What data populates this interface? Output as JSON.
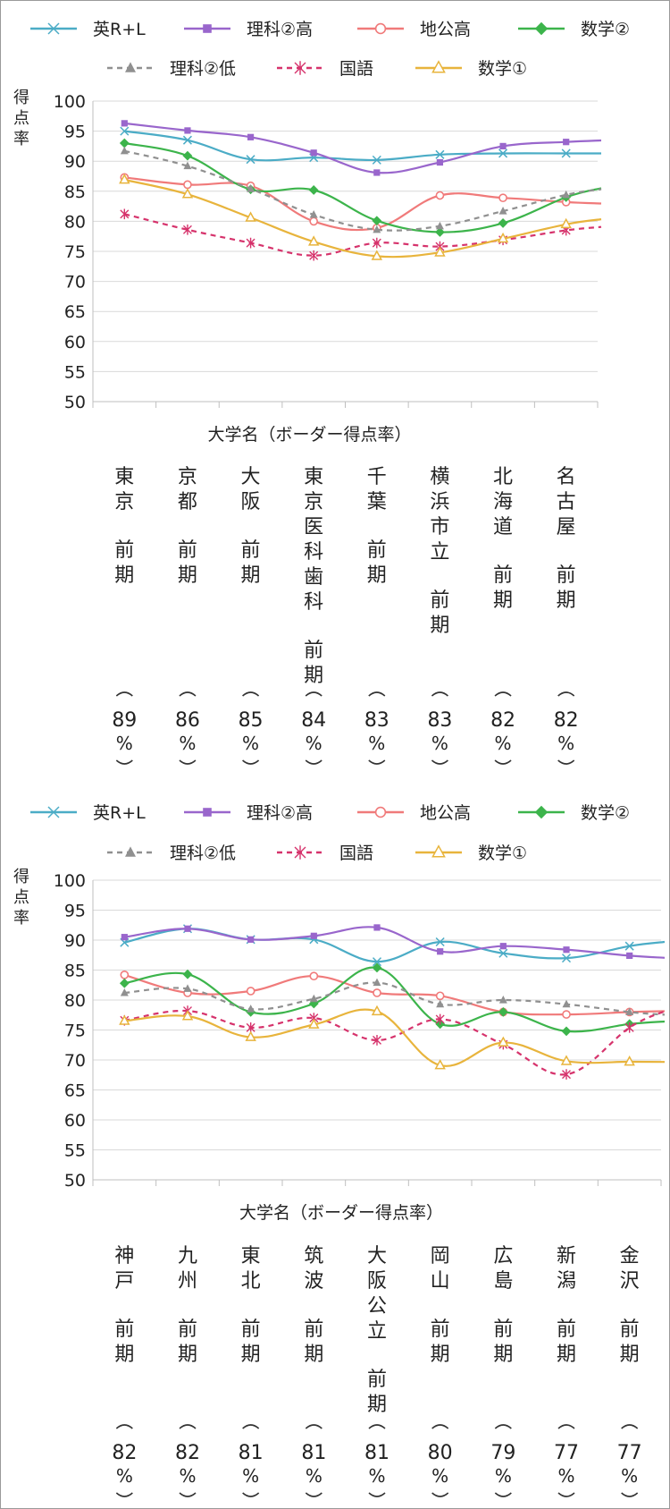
{
  "chart_data": [
    {
      "type": "line",
      "ylabel": "得点率",
      "xlabel": "大学名（ボーダー得点率）",
      "ylim": [
        50,
        100
      ],
      "yticks": [
        50,
        55,
        60,
        65,
        70,
        75,
        80,
        85,
        90,
        95,
        100
      ],
      "grid": true,
      "legend_position": "top",
      "categories": [
        {
          "name": "東京",
          "term": "前期",
          "rate": "89%"
        },
        {
          "name": "京都",
          "term": "前期",
          "rate": "86%"
        },
        {
          "name": "大阪",
          "term": "前期",
          "rate": "85%"
        },
        {
          "name": "東京医科歯科",
          "term": "前期",
          "rate": "84%"
        },
        {
          "name": "千葉",
          "term": "前期",
          "rate": "83%"
        },
        {
          "name": "横浜市立",
          "term": "前期",
          "rate": "83%"
        },
        {
          "name": "北海道",
          "term": "前期",
          "rate": "82%"
        },
        {
          "name": "名古屋",
          "term": "前期",
          "rate": "82%"
        }
      ],
      "series": [
        {
          "name": "英R+L",
          "color": "#4bacc6",
          "marker": "x-cross",
          "dashed": false,
          "values": [
            95,
            93.5,
            90.3,
            90.6,
            90.2,
            91.1,
            91.3,
            91.3
          ]
        },
        {
          "name": "理科②高",
          "color": "#9966cc",
          "marker": "square",
          "dashed": false,
          "values": [
            96.3,
            95.1,
            94,
            91.4,
            88.1,
            89.8,
            92.5,
            93.2
          ]
        },
        {
          "name": "地公高",
          "color": "#f07a7a",
          "marker": "circle",
          "dashed": false,
          "values": [
            87.3,
            86.1,
            85.9,
            80,
            78.9,
            84.3,
            83.9,
            83.2
          ]
        },
        {
          "name": "数学②",
          "color": "#3cb44b",
          "marker": "diamond",
          "dashed": false,
          "values": [
            93,
            90.9,
            85.3,
            85.2,
            80.1,
            78.2,
            79.7,
            84
          ]
        },
        {
          "name": "理科②低",
          "color": "#909090",
          "marker": "triangle",
          "dashed": true,
          "values": [
            91.7,
            89.2,
            85.4,
            81.1,
            78.6,
            79.2,
            81.7,
            84.4
          ]
        },
        {
          "name": "国語",
          "color": "#d6336c",
          "marker": "asterisk",
          "dashed": true,
          "values": [
            81.2,
            78.6,
            76.4,
            74.3,
            76.4,
            75.8,
            76.9,
            78.5
          ]
        },
        {
          "name": "数学①",
          "color": "#e8b43c",
          "marker": "triangle-open",
          "dashed": false,
          "values": [
            86.9,
            84.5,
            80.6,
            76.6,
            74.2,
            74.8,
            77.1,
            79.5
          ]
        }
      ]
    },
    {
      "type": "line",
      "ylabel": "得点率",
      "xlabel": "大学名（ボーダー得点率）",
      "ylim": [
        50,
        100
      ],
      "yticks": [
        50,
        55,
        60,
        65,
        70,
        75,
        80,
        85,
        90,
        95,
        100
      ],
      "grid": true,
      "legend_position": "top",
      "categories": [
        {
          "name": "神戸",
          "term": "前期",
          "rate": "82%"
        },
        {
          "name": "九州",
          "term": "前期",
          "rate": "82%"
        },
        {
          "name": "東北",
          "term": "前期",
          "rate": "81%"
        },
        {
          "name": "筑波",
          "term": "前期",
          "rate": "81%"
        },
        {
          "name": "大阪公立",
          "term": "前期",
          "rate": "81%"
        },
        {
          "name": "岡山",
          "term": "前期",
          "rate": "80%"
        },
        {
          "name": "広島",
          "term": "前期",
          "rate": "79%"
        },
        {
          "name": "新潟",
          "term": "前期",
          "rate": "77%"
        },
        {
          "name": "金沢",
          "term": "前期",
          "rate": "77%"
        }
      ],
      "series": [
        {
          "name": "英R+L",
          "color": "#4bacc6",
          "marker": "x-cross",
          "dashed": false,
          "values": [
            89.6,
            91.9,
            90.1,
            90.1,
            86.4,
            89.7,
            87.8,
            87,
            89
          ]
        },
        {
          "name": "理科②高",
          "color": "#9966cc",
          "marker": "square",
          "dashed": false,
          "values": [
            90.5,
            91.9,
            90.1,
            90.7,
            92.1,
            88.1,
            89,
            88.4,
            87.4
          ]
        },
        {
          "name": "地公高",
          "color": "#f07a7a",
          "marker": "circle",
          "dashed": false,
          "values": [
            84.2,
            81.2,
            81.5,
            84,
            81.2,
            80.7,
            78,
            77.6,
            78
          ]
        },
        {
          "name": "数学②",
          "color": "#3cb44b",
          "marker": "diamond",
          "dashed": false,
          "values": [
            82.8,
            84.3,
            78,
            79.4,
            85.4,
            76,
            78,
            74.8,
            76
          ]
        },
        {
          "name": "理科②低",
          "color": "#909090",
          "marker": "triangle",
          "dashed": true,
          "values": [
            81.2,
            81.9,
            78.5,
            80.2,
            82.9,
            79.3,
            80,
            79.3,
            78
          ]
        },
        {
          "name": "国語",
          "color": "#d6336c",
          "marker": "asterisk",
          "dashed": true,
          "values": [
            76.6,
            78.2,
            75.4,
            77,
            73.3,
            76.8,
            72.6,
            67.6,
            75.4
          ]
        },
        {
          "name": "数学①",
          "color": "#e8b43c",
          "marker": "triangle-open",
          "dashed": false,
          "values": [
            76.5,
            77.3,
            73.8,
            75.9,
            78.1,
            69.1,
            72.9,
            69.8,
            69.7
          ]
        }
      ]
    }
  ]
}
